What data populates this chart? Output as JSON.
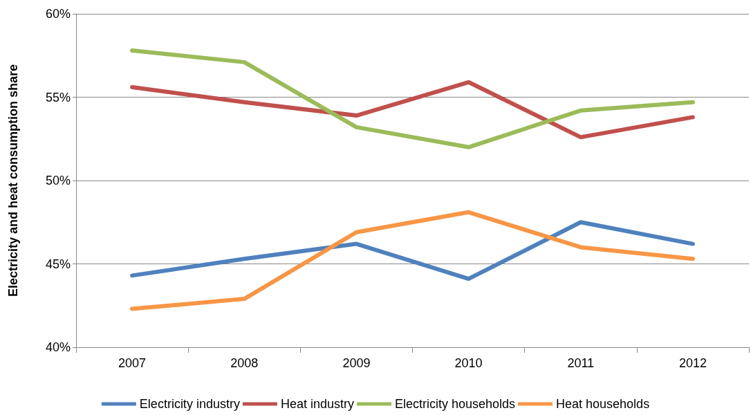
{
  "chart_data": {
    "type": "line",
    "ylabel": "Electricity and heat consumption share",
    "categories": [
      "2007",
      "2008",
      "2009",
      "2010",
      "2011",
      "2012"
    ],
    "series": [
      {
        "name": "Electricity industry",
        "color": "#4f81bd",
        "values": [
          44.3,
          45.3,
          46.2,
          44.1,
          47.5,
          46.2
        ]
      },
      {
        "name": "Heat industry",
        "color": "#c0504d",
        "values": [
          55.6,
          54.7,
          53.9,
          55.9,
          52.6,
          53.8
        ]
      },
      {
        "name": "Electricity households",
        "color": "#9bbb59",
        "values": [
          57.8,
          57.1,
          53.2,
          52.0,
          54.2,
          54.7
        ]
      },
      {
        "name": "Heat households",
        "color": "#f79646",
        "values": [
          42.3,
          42.9,
          46.9,
          48.1,
          46.0,
          45.3
        ]
      }
    ],
    "ylim": [
      40,
      60
    ],
    "yticks": [
      {
        "value": 40,
        "label": "40%"
      },
      {
        "value": 45,
        "label": "45%"
      },
      {
        "value": 50,
        "label": "50%"
      },
      {
        "value": 55,
        "label": "55%"
      },
      {
        "value": 60,
        "label": "60%"
      }
    ],
    "grid": "y",
    "legend": "bottom",
    "marker": "none",
    "line_style": "solid"
  }
}
